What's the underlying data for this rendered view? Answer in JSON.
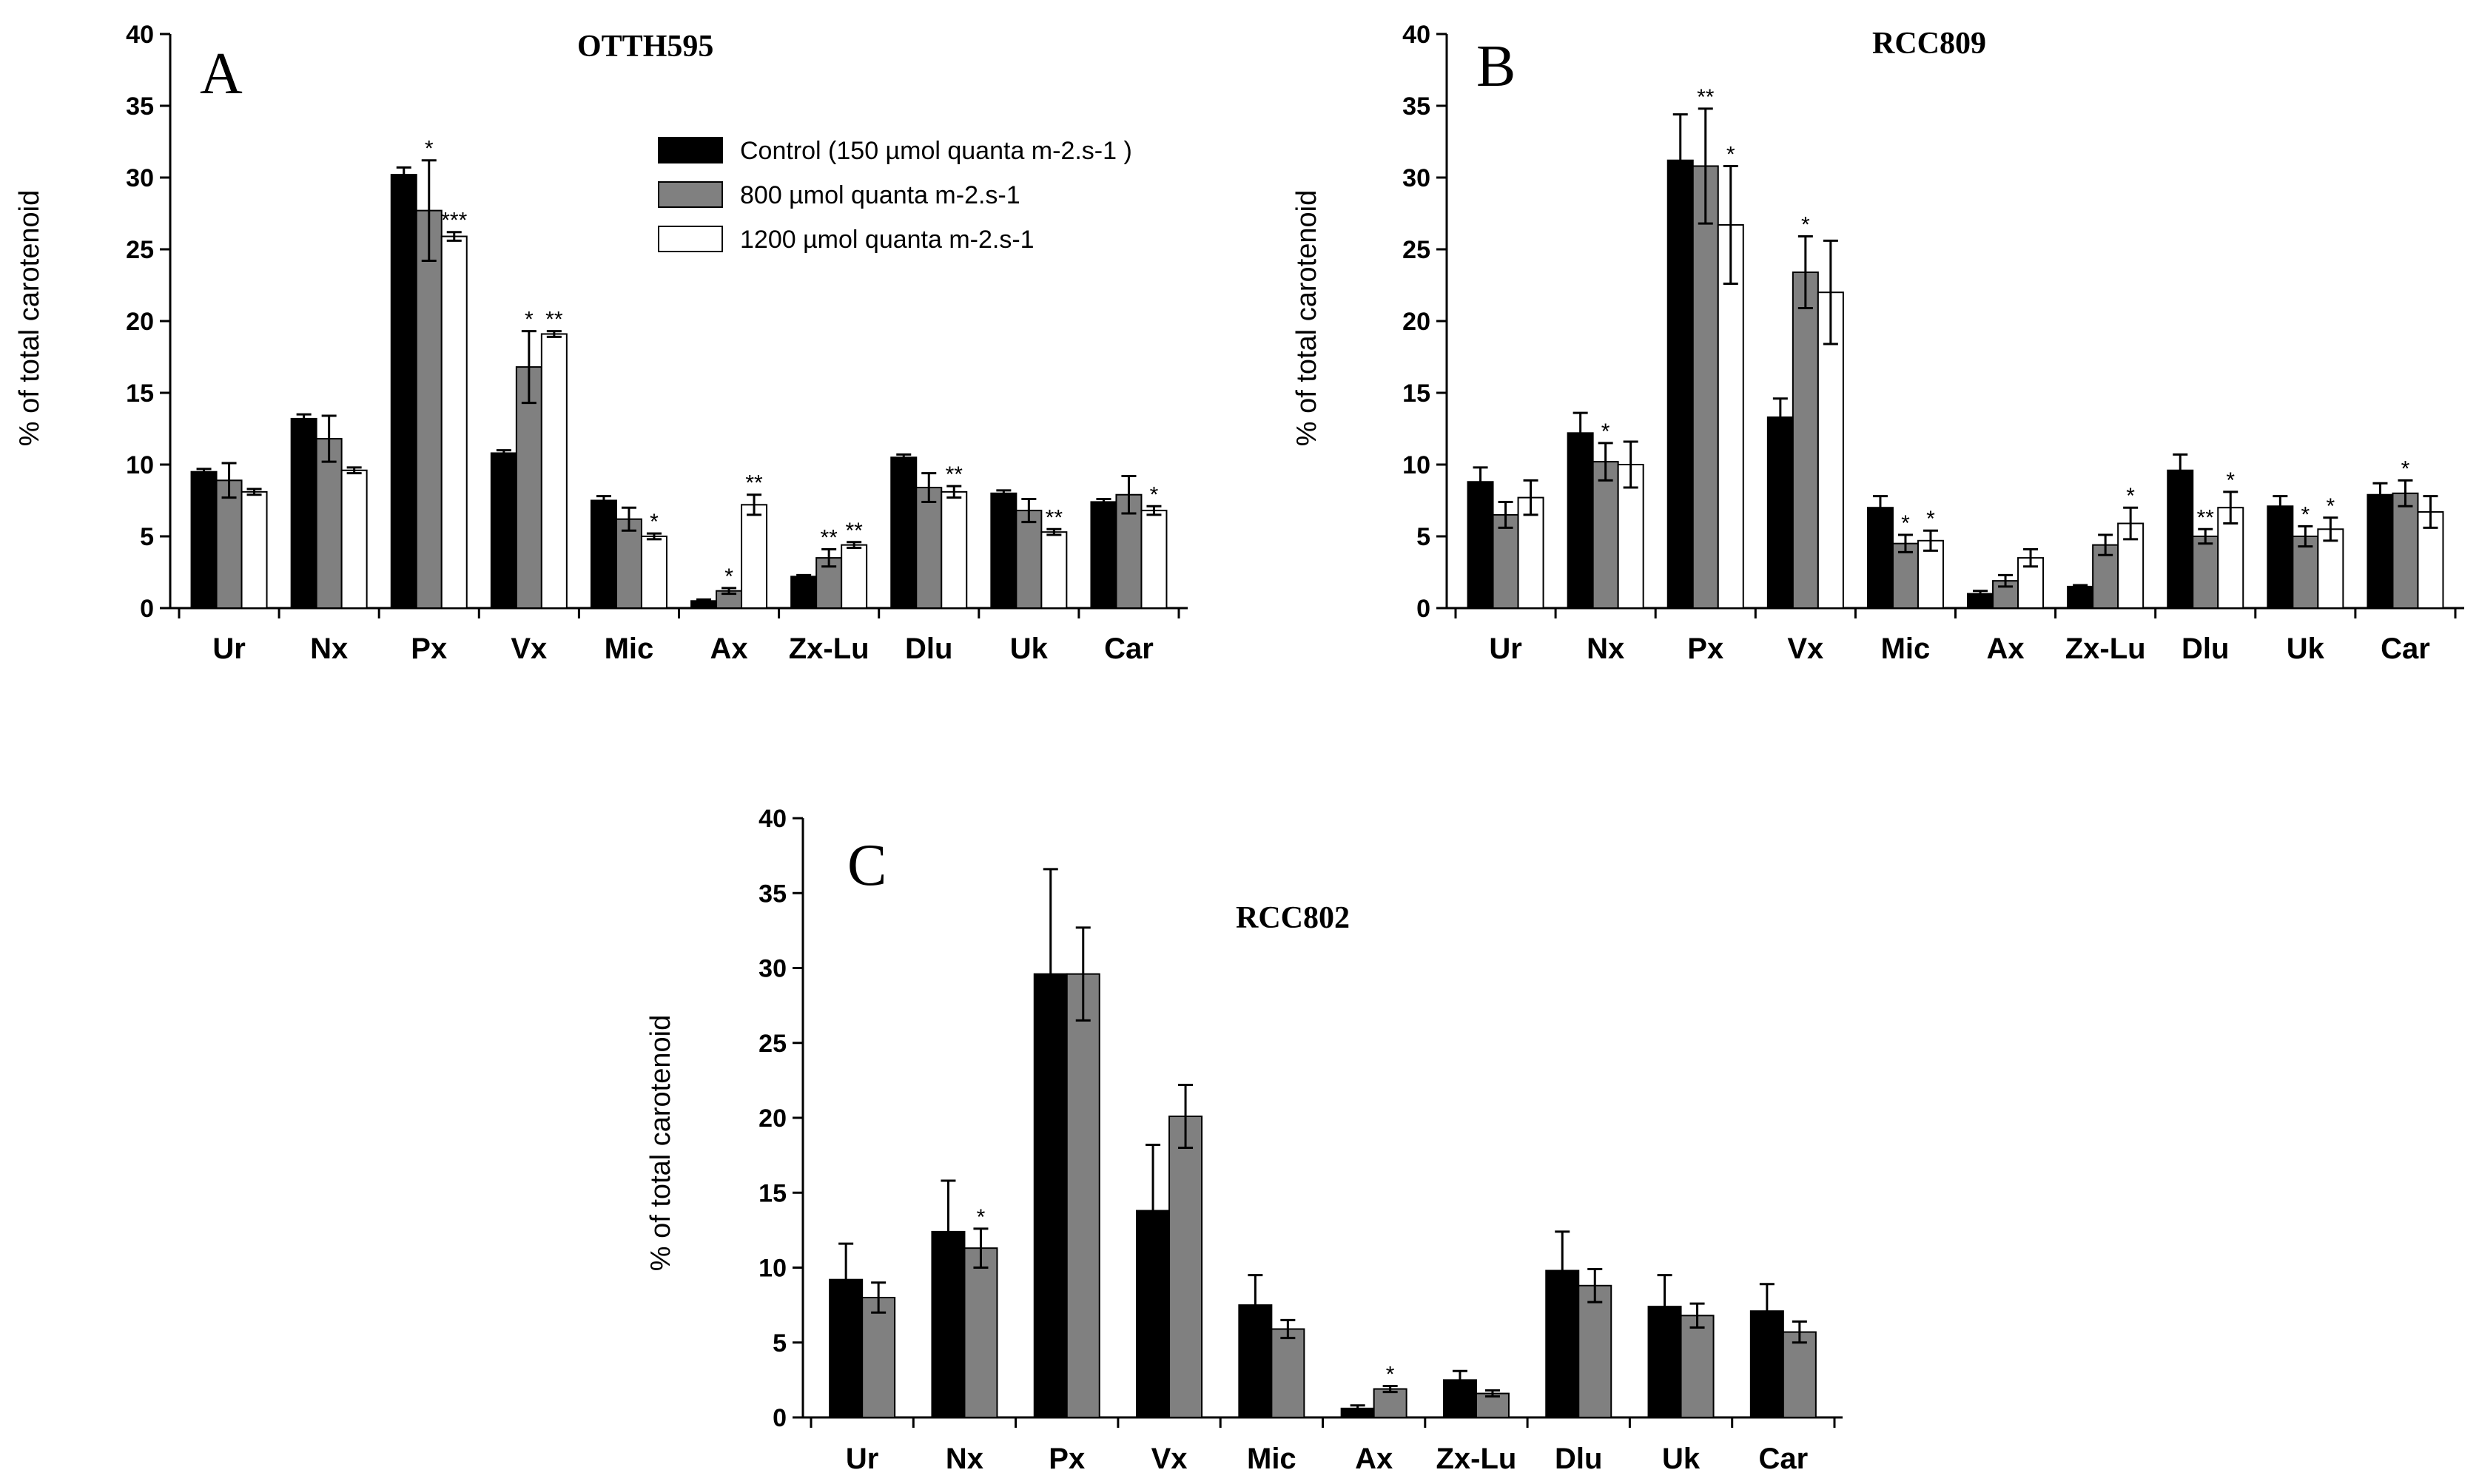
{
  "legend": [
    {
      "label": "Control (150 µmol quanta m-2.s-1 )",
      "color": "#000000"
    },
    {
      "label": "800 µmol quanta m-2.s-1",
      "color": "#808080"
    },
    {
      "label": "1200 µmol quanta m-2.s-1",
      "color": "#ffffff"
    }
  ],
  "chart_data": [
    {
      "type": "bar",
      "panel": "A",
      "title": "OTTH595",
      "ylabel": "% of total carotenoid",
      "xlabel": "",
      "ylim": [
        0,
        40
      ],
      "yticks": [
        0,
        5,
        10,
        15,
        20,
        25,
        30,
        35,
        40
      ],
      "categories": [
        "Ur",
        "Nx",
        "Px",
        "Vx",
        "Mic",
        "Ax",
        "Zx-Lu",
        "Dlu",
        "Uk",
        "Car"
      ],
      "series": [
        {
          "values": [
            9.5,
            13.2,
            30.2,
            10.8,
            7.5,
            0.5,
            2.2,
            10.5,
            8.0,
            7.4
          ],
          "errors": [
            0.2,
            0.3,
            0.5,
            0.2,
            0.3,
            0.1,
            0.1,
            0.2,
            0.2,
            0.2
          ],
          "sig": [
            "",
            "",
            "",
            "",
            "",
            "",
            "",
            "",
            "",
            ""
          ]
        },
        {
          "values": [
            8.9,
            11.8,
            27.7,
            16.8,
            6.2,
            1.2,
            3.5,
            8.4,
            6.8,
            7.9
          ],
          "errors": [
            1.2,
            1.6,
            3.5,
            2.5,
            0.8,
            0.2,
            0.6,
            1.0,
            0.8,
            1.3
          ],
          "sig": [
            "",
            "",
            "*",
            "*",
            "",
            "*",
            "**",
            "",
            "",
            ""
          ]
        },
        {
          "values": [
            8.1,
            9.6,
            25.9,
            19.1,
            5.0,
            7.2,
            4.4,
            8.1,
            5.3,
            6.8
          ],
          "errors": [
            0.2,
            0.2,
            0.3,
            0.2,
            0.2,
            0.7,
            0.2,
            0.4,
            0.2,
            0.3
          ],
          "sig": [
            "",
            "",
            "***",
            "**",
            "*",
            "**",
            "**",
            "**",
            "**",
            "*"
          ]
        }
      ]
    },
    {
      "type": "bar",
      "panel": "B",
      "title": "RCC809",
      "ylabel": "% of total carotenoid",
      "xlabel": "",
      "ylim": [
        0,
        40
      ],
      "yticks": [
        0,
        5,
        10,
        15,
        20,
        25,
        30,
        35,
        40
      ],
      "categories": [
        "Ur",
        "Nx",
        "Px",
        "Vx",
        "Mic",
        "Ax",
        "Zx-Lu",
        "Dlu",
        "Uk",
        "Car"
      ],
      "series": [
        {
          "values": [
            8.8,
            12.2,
            31.2,
            13.3,
            7.0,
            1.0,
            1.5,
            9.6,
            7.1,
            7.9
          ],
          "errors": [
            1.0,
            1.4,
            3.2,
            1.3,
            0.8,
            0.2,
            0.1,
            1.1,
            0.7,
            0.8
          ],
          "sig": [
            "",
            "",
            "",
            "",
            "",
            "",
            "",
            "",
            "",
            ""
          ]
        },
        {
          "values": [
            6.5,
            10.2,
            30.8,
            23.4,
            4.5,
            1.9,
            4.4,
            5.0,
            5.0,
            8.0
          ],
          "errors": [
            0.9,
            1.3,
            4.0,
            2.5,
            0.6,
            0.4,
            0.7,
            0.5,
            0.7,
            0.9
          ],
          "sig": [
            "",
            "*",
            "**",
            "*",
            "*",
            "",
            "",
            "**",
            "*",
            "*"
          ]
        },
        {
          "values": [
            7.7,
            10.0,
            26.7,
            22.0,
            4.7,
            3.5,
            5.9,
            7.0,
            5.5,
            6.7
          ],
          "errors": [
            1.2,
            1.6,
            4.1,
            3.6,
            0.7,
            0.6,
            1.1,
            1.1,
            0.8,
            1.1
          ],
          "sig": [
            "",
            "",
            "*",
            "",
            "*",
            "",
            "*",
            "*",
            "*",
            ""
          ]
        }
      ]
    },
    {
      "type": "bar",
      "panel": "C",
      "title": "RCC802",
      "ylabel": "% of total carotenoid",
      "xlabel": "",
      "ylim": [
        0,
        40
      ],
      "yticks": [
        0,
        5,
        10,
        15,
        20,
        25,
        30,
        35,
        40
      ],
      "categories": [
        "Ur",
        "Nx",
        "Px",
        "Vx",
        "Mic",
        "Ax",
        "Zx-Lu",
        "Dlu",
        "Uk",
        "Car"
      ],
      "series": [
        {
          "values": [
            9.2,
            12.4,
            29.6,
            13.8,
            7.5,
            0.6,
            2.5,
            9.8,
            7.4,
            7.1
          ],
          "errors": [
            2.4,
            3.4,
            7.0,
            4.4,
            2.0,
            0.2,
            0.6,
            2.6,
            2.1,
            1.8
          ],
          "sig": [
            "",
            "",
            "",
            "",
            "",
            "",
            "",
            "",
            "",
            ""
          ]
        },
        {
          "values": [
            8.0,
            11.3,
            29.6,
            20.1,
            5.9,
            1.9,
            1.6,
            8.8,
            6.8,
            5.7
          ],
          "errors": [
            1.0,
            1.3,
            3.1,
            2.1,
            0.6,
            0.2,
            0.2,
            1.1,
            0.8,
            0.7
          ],
          "sig": [
            "",
            "*",
            "",
            "",
            "",
            "*",
            "",
            "",
            "",
            ""
          ]
        }
      ]
    }
  ]
}
